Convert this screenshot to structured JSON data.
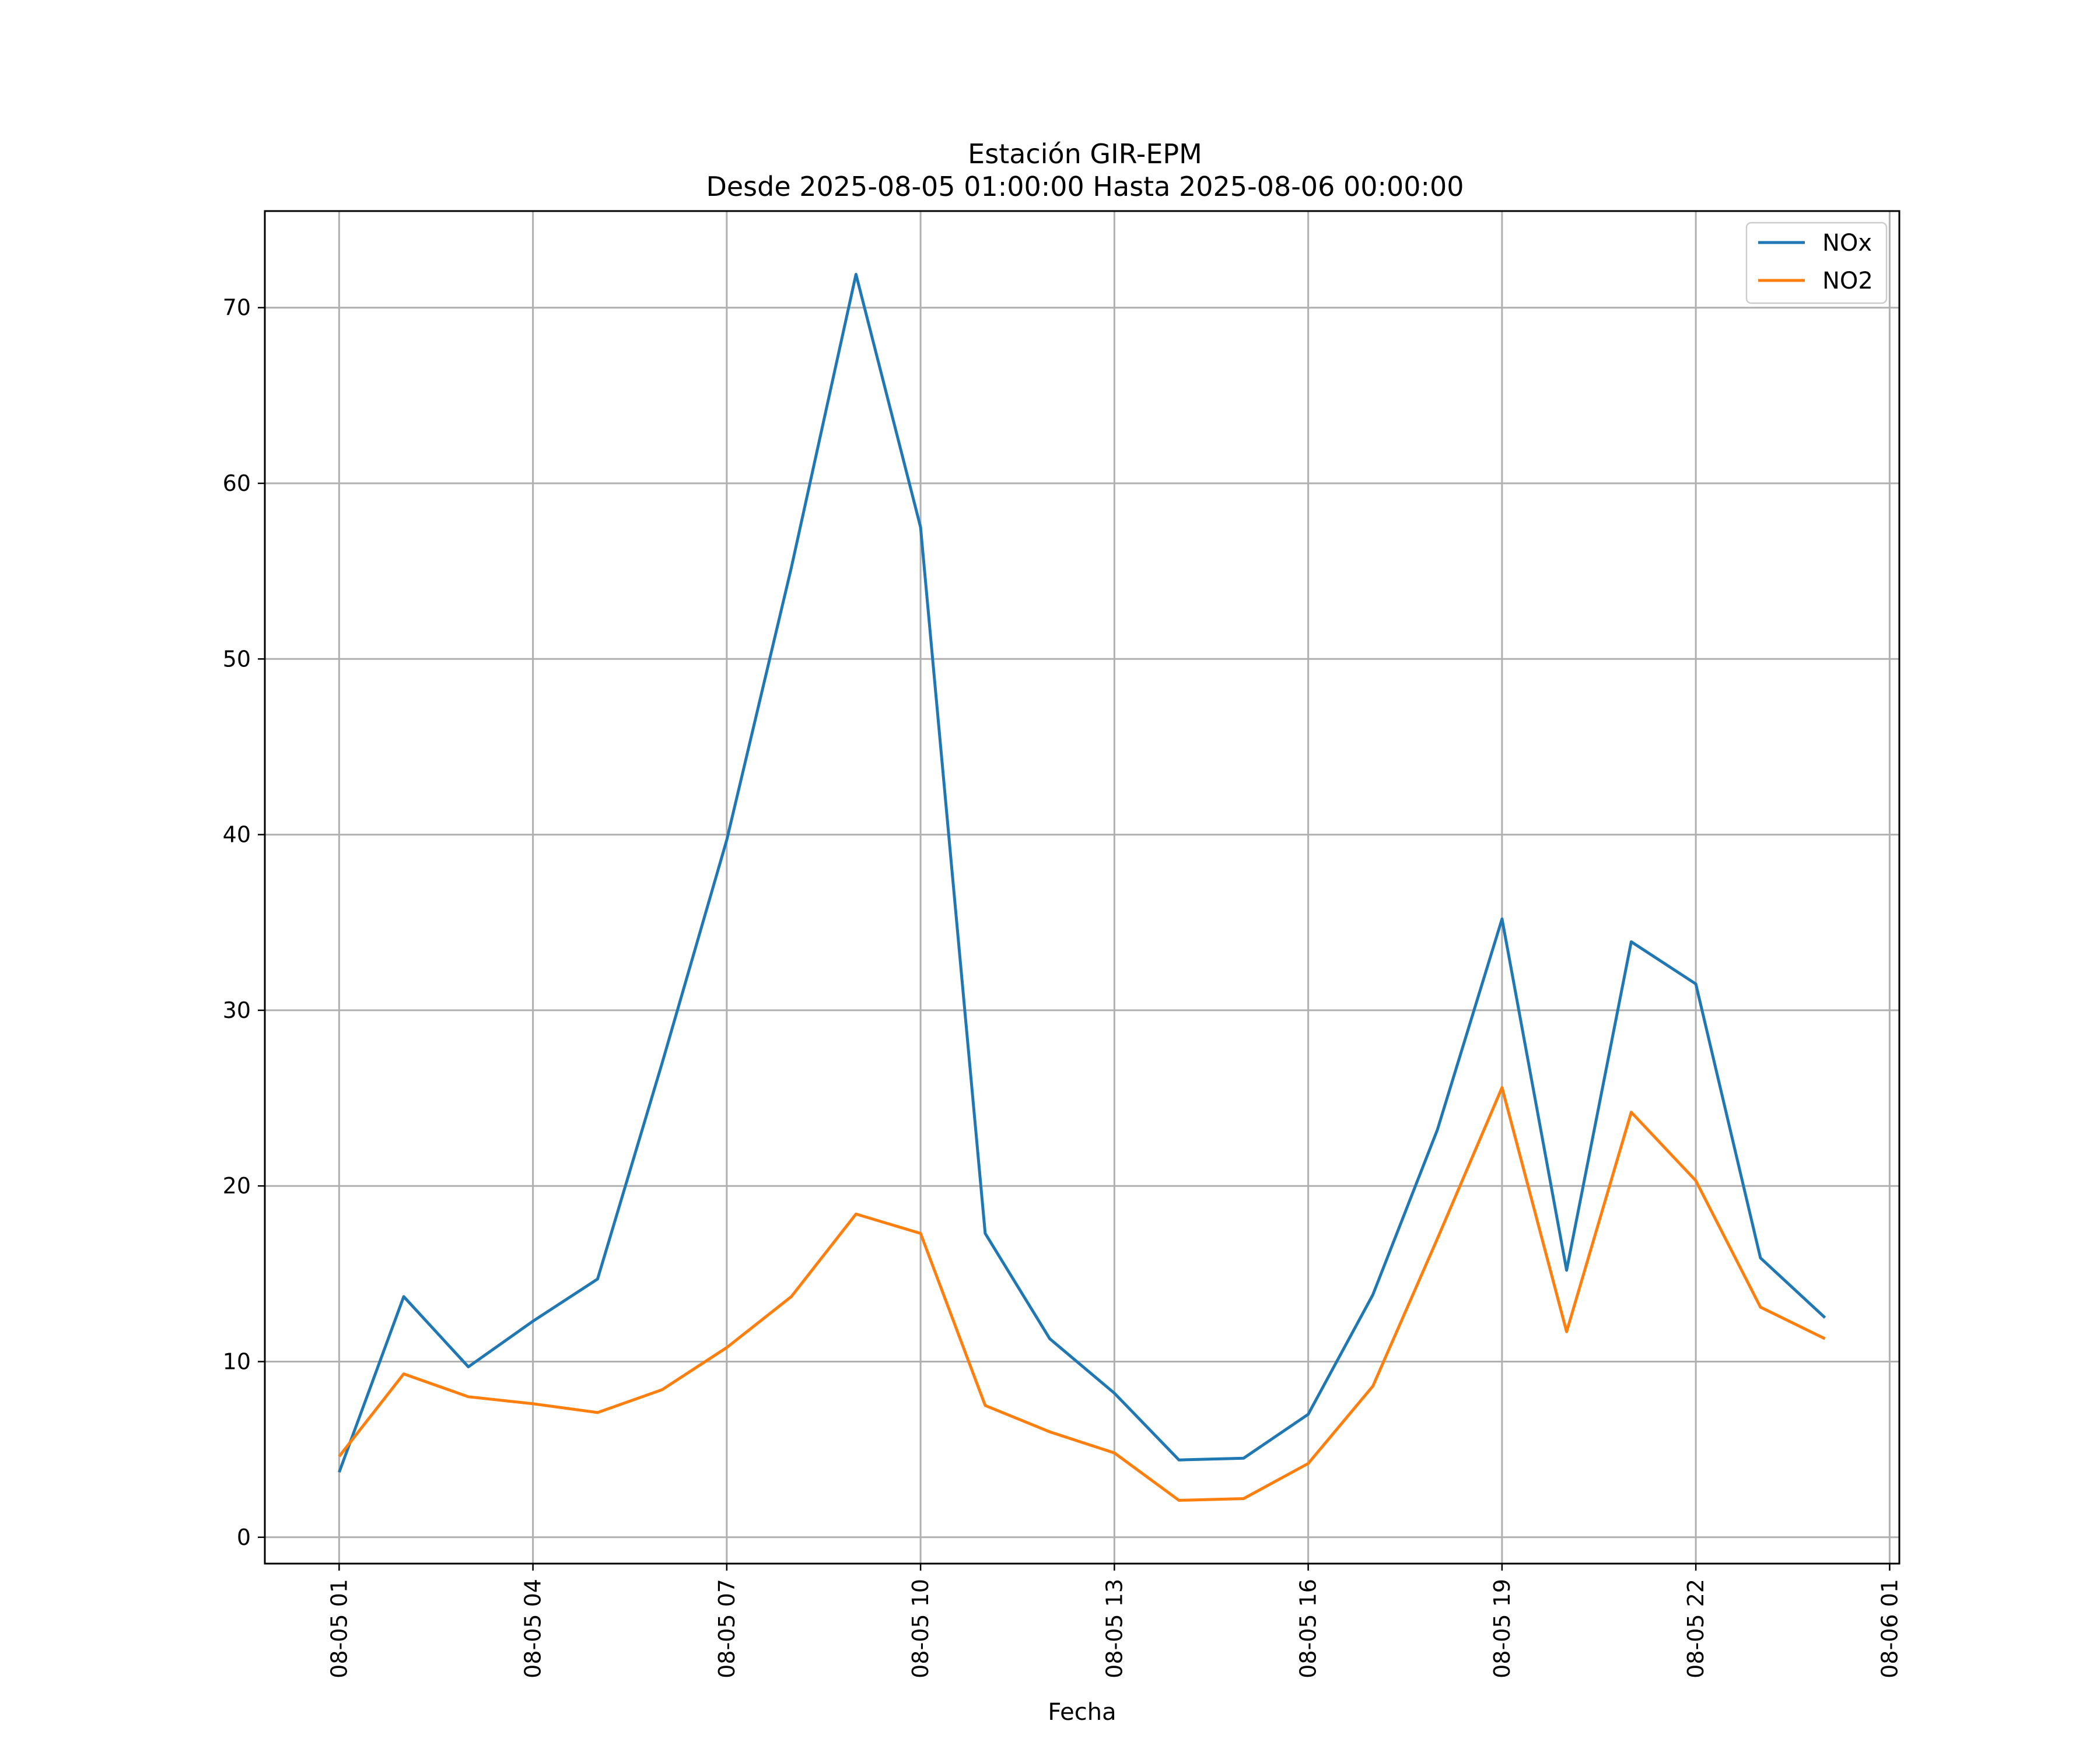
{
  "chart_data": {
    "type": "line",
    "title": "Estación GIR-EPM",
    "subtitle": "Desde 2025-08-05 01:00:00 Hasta 2025-08-06 00:00:00",
    "xlabel": "Fecha",
    "ylabel": "",
    "x": [
      "2025-08-05 01:00",
      "2025-08-05 02:00",
      "2025-08-05 03:00",
      "2025-08-05 04:00",
      "2025-08-05 05:00",
      "2025-08-05 06:00",
      "2025-08-05 07:00",
      "2025-08-05 08:00",
      "2025-08-05 09:00",
      "2025-08-05 10:00",
      "2025-08-05 11:00",
      "2025-08-05 12:00",
      "2025-08-05 13:00",
      "2025-08-05 14:00",
      "2025-08-05 15:00",
      "2025-08-05 16:00",
      "2025-08-05 17:00",
      "2025-08-05 18:00",
      "2025-08-05 19:00",
      "2025-08-05 20:00",
      "2025-08-05 21:00",
      "2025-08-05 22:00",
      "2025-08-05 23:00",
      "2025-08-06 00:00"
    ],
    "series": [
      {
        "name": "NOx",
        "color": "#1f77b4",
        "values": [
          3.7,
          13.7,
          9.7,
          12.3,
          14.7,
          27.0,
          39.7,
          55.2,
          71.9,
          57.5,
          17.3,
          11.3,
          8.2,
          4.4,
          4.5,
          7.0,
          13.8,
          23.2,
          35.2,
          15.2,
          33.9,
          31.5,
          15.9,
          12.5
        ]
      },
      {
        "name": "NO2",
        "color": "#ff7f0e",
        "values": [
          4.6,
          9.3,
          8.0,
          7.6,
          7.1,
          8.4,
          10.8,
          13.7,
          18.4,
          17.3,
          7.5,
          6.0,
          4.8,
          2.1,
          2.2,
          4.2,
          8.6,
          17.0,
          25.6,
          11.7,
          24.2,
          20.3,
          13.1,
          11.3
        ]
      }
    ],
    "xticks": [
      "08-05 01",
      "08-05 04",
      "08-05 07",
      "08-05 10",
      "08-05 13",
      "08-05 16",
      "08-05 19",
      "08-05 22",
      "08-06 01"
    ],
    "yticks": [
      "0",
      "10",
      "20",
      "30",
      "40",
      "50",
      "60",
      "70"
    ],
    "xlim": [
      "2025-08-04 23:51",
      "2025-08-06 01:09"
    ],
    "ylim": [
      -1.5,
      75.5
    ],
    "grid": true,
    "legend_position": "top-right"
  }
}
